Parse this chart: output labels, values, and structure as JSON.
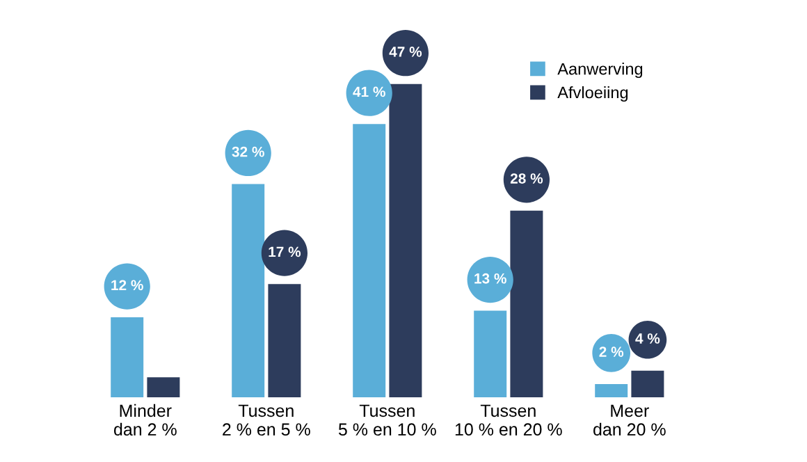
{
  "chart_data": {
    "type": "bar",
    "categories": [
      "Minder\ndan 2 %",
      "Tussen\n2 % en 5 %",
      "Tussen\n5 % en 10 %",
      "Tussen\n10 % en 20 %",
      "Meer\ndan 20 %"
    ],
    "series": [
      {
        "name": "Aanwerving",
        "color": "#5aaed8",
        "values": [
          12,
          32,
          41,
          13,
          2
        ],
        "value_labels": [
          "12 %",
          "32 %",
          "41 %",
          "13 %",
          "2 %"
        ]
      },
      {
        "name": "Afvloeiing",
        "color": "#2d3c5c",
        "values": [
          3,
          17,
          47,
          28,
          4
        ],
        "value_labels": [
          null,
          "17 %",
          "47 %",
          "28 %",
          "4 %"
        ]
      }
    ],
    "legend": "top right",
    "grid": false,
    "tick_labels": "x"
  }
}
